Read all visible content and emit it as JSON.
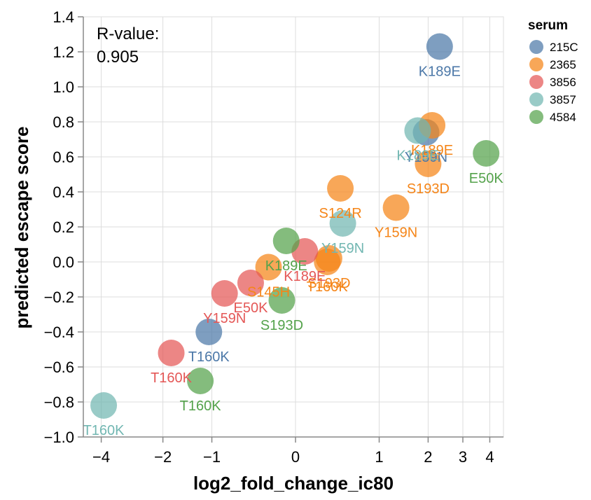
{
  "chart_data": {
    "type": "scatter",
    "xlabel": "log2_fold_change_ic80",
    "ylabel": "predicted escape score",
    "x_scale": "symlog",
    "xlim": [
      -4.8,
      4.6
    ],
    "ylim": [
      -1.0,
      1.4
    ],
    "x_ticks": [
      -4,
      -2,
      -1,
      0,
      1,
      2,
      3,
      4
    ],
    "y_ticks": [
      -1.0,
      -0.8,
      -0.6,
      -0.4,
      -0.2,
      0.0,
      0.2,
      0.4,
      0.6,
      0.8,
      1.0,
      1.2,
      1.4
    ],
    "annotation": {
      "line1": "R-value:",
      "line2": "0.905"
    },
    "legend": {
      "title": "serum",
      "position": "top-right"
    },
    "series": [
      {
        "name": "215C",
        "color": "#4c78a8",
        "points": [
          {
            "x": 2.3,
            "y": 1.23,
            "label": "K189E"
          },
          {
            "x": 1.95,
            "y": 0.74,
            "label": "Y159N"
          },
          {
            "x": -1.05,
            "y": -0.4,
            "label": "T160K"
          }
        ]
      },
      {
        "name": "2365",
        "color": "#f58518",
        "points": [
          {
            "x": 2.1,
            "y": 0.78,
            "label": "K189E"
          },
          {
            "x": 2.0,
            "y": 0.56,
            "label": "S193D"
          },
          {
            "x": 0.45,
            "y": 0.42,
            "label": "S124R"
          },
          {
            "x": 1.3,
            "y": 0.31,
            "label": "Y159N"
          },
          {
            "x": 0.32,
            "y": 0.02,
            "label": "S193D"
          },
          {
            "x": 0.3,
            "y": 0.0,
            "label": "T160K"
          },
          {
            "x": -0.25,
            "y": -0.03,
            "label": "S145H"
          }
        ]
      },
      {
        "name": "3856",
        "color": "#e45756",
        "points": [
          {
            "x": 0.08,
            "y": 0.06,
            "label": "K189E"
          },
          {
            "x": -0.45,
            "y": -0.12,
            "label": "E50K"
          },
          {
            "x": -0.8,
            "y": -0.18,
            "label": "Y159N"
          },
          {
            "x": -1.8,
            "y": -0.52,
            "label": "T160K"
          }
        ]
      },
      {
        "name": "3857",
        "color": "#72b7b2",
        "points": [
          {
            "x": 1.75,
            "y": 0.75,
            "label": "K189E"
          },
          {
            "x": 0.48,
            "y": 0.22,
            "label": "Y159N"
          },
          {
            "x": -3.9,
            "y": -0.82,
            "label": "T160K"
          }
        ]
      },
      {
        "name": "4584",
        "color": "#54a24b",
        "points": [
          {
            "x": 3.85,
            "y": 0.62,
            "label": "E50K"
          },
          {
            "x": -0.08,
            "y": 0.12,
            "label": "K189E"
          },
          {
            "x": -0.12,
            "y": -0.22,
            "label": "S193D"
          },
          {
            "x": -1.2,
            "y": -0.68,
            "label": "T160K"
          }
        ]
      }
    ]
  }
}
